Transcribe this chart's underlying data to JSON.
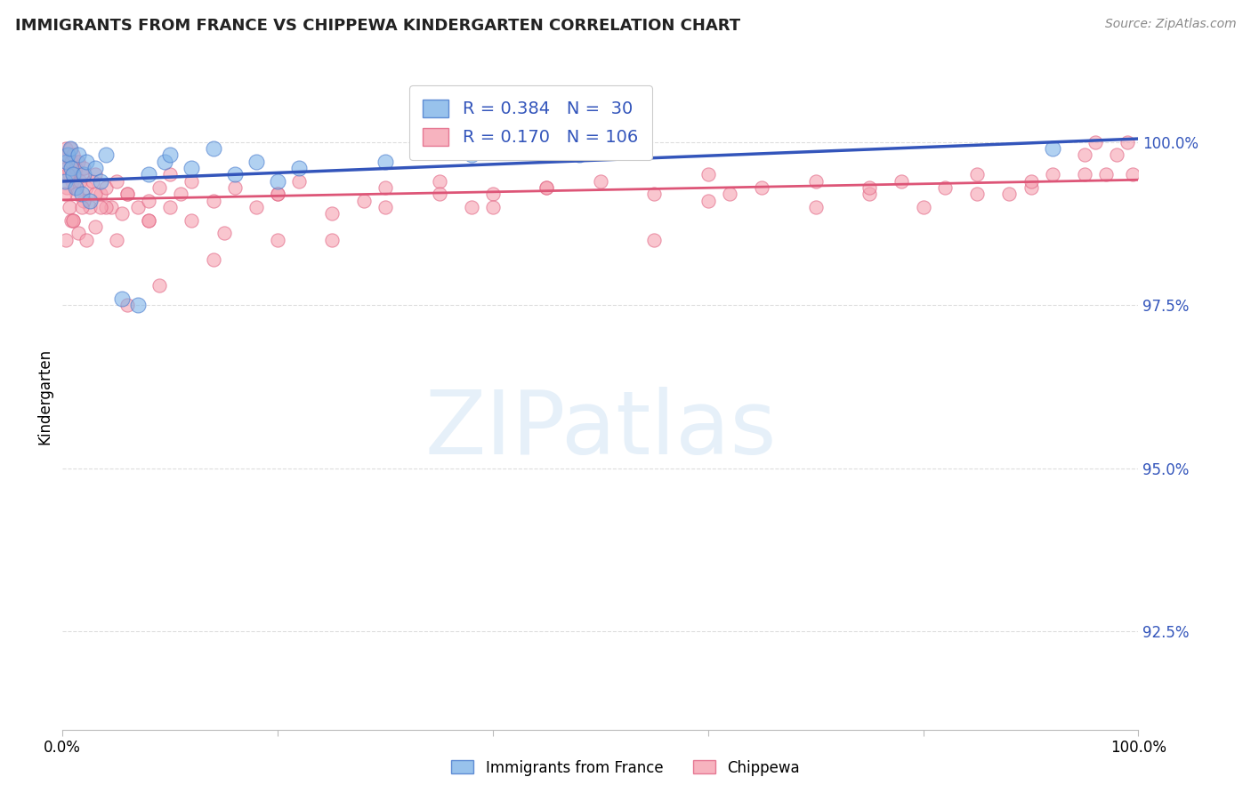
{
  "title": "IMMIGRANTS FROM FRANCE VS CHIPPEWA KINDERGARTEN CORRELATION CHART",
  "source": "Source: ZipAtlas.com",
  "ylabel": "Kindergarten",
  "ylabel_right_ticks": [
    92.5,
    95.0,
    97.5,
    100.0
  ],
  "ylabel_right_labels": [
    "92.5%",
    "95.0%",
    "97.5%",
    "100.0%"
  ],
  "xlim": [
    0.0,
    100.0
  ],
  "ylim": [
    91.0,
    101.2
  ],
  "blue_color": "#7EB3E8",
  "pink_color": "#F5A0B0",
  "blue_edge_color": "#4477CC",
  "pink_edge_color": "#E06080",
  "blue_line_color": "#3355BB",
  "pink_line_color": "#DD5577",
  "legend_blue_r": "0.384",
  "legend_blue_n": "30",
  "legend_pink_r": "0.170",
  "legend_pink_n": "106",
  "legend_r_color": "#3355BB",
  "legend_n_color": "#3355BB",
  "background_color": "#FFFFFF",
  "grid_color": "#DDDDDD",
  "watermark_text": "ZIPatlas",
  "watermark_color": "#B8D4EE",
  "france_x": [
    0.2,
    0.4,
    0.5,
    0.7,
    0.8,
    1.0,
    1.2,
    1.5,
    1.8,
    2.0,
    2.2,
    2.5,
    3.0,
    3.5,
    4.0,
    5.5,
    7.0,
    8.0,
    9.5,
    10.0,
    12.0,
    14.0,
    16.0,
    18.0,
    20.0,
    22.0,
    30.0,
    38.0,
    48.0,
    92.0
  ],
  "france_y": [
    99.4,
    99.7,
    99.8,
    99.9,
    99.6,
    99.5,
    99.3,
    99.8,
    99.2,
    99.5,
    99.7,
    99.1,
    99.6,
    99.4,
    99.8,
    97.6,
    97.5,
    99.5,
    99.7,
    99.8,
    99.6,
    99.9,
    99.5,
    99.7,
    99.4,
    99.6,
    99.7,
    99.8,
    99.8,
    99.9
  ],
  "chippewa_x": [
    0.1,
    0.2,
    0.3,
    0.4,
    0.5,
    0.6,
    0.7,
    0.8,
    0.9,
    1.0,
    1.1,
    1.2,
    1.3,
    1.5,
    1.6,
    1.8,
    2.0,
    2.2,
    2.5,
    2.8,
    3.0,
    3.5,
    4.0,
    4.5,
    5.0,
    5.5,
    6.0,
    7.0,
    8.0,
    9.0,
    10.0,
    11.0,
    12.0,
    14.0,
    16.0,
    18.0,
    20.0,
    22.0,
    25.0,
    28.0,
    30.0,
    35.0,
    38.0,
    40.0,
    45.0,
    50.0,
    55.0,
    60.0,
    62.0,
    65.0,
    70.0,
    75.0,
    78.0,
    80.0,
    82.0,
    85.0,
    88.0,
    90.0,
    92.0,
    95.0,
    96.0,
    97.0,
    98.0,
    99.0,
    99.5,
    0.3,
    0.6,
    1.0,
    1.5,
    2.0,
    3.0,
    4.0,
    6.0,
    8.0,
    10.0,
    15.0,
    20.0,
    30.0,
    45.0,
    60.0,
    75.0,
    90.0,
    0.4,
    0.8,
    1.3,
    2.2,
    3.5,
    6.0,
    9.0,
    14.0,
    25.0,
    40.0,
    55.0,
    70.0,
    85.0,
    95.0,
    0.2,
    0.5,
    1.0,
    1.8,
    3.0,
    5.0,
    8.0,
    12.0,
    20.0,
    35.0
  ],
  "chippewa_y": [
    99.8,
    99.7,
    99.9,
    99.6,
    99.8,
    99.5,
    99.9,
    99.7,
    99.4,
    99.8,
    99.5,
    99.6,
    99.3,
    99.7,
    99.4,
    99.5,
    99.6,
    99.3,
    99.0,
    99.4,
    99.5,
    99.2,
    99.3,
    99.0,
    99.4,
    98.9,
    99.2,
    99.0,
    98.8,
    99.3,
    99.5,
    99.2,
    99.4,
    99.1,
    99.3,
    99.0,
    99.2,
    99.4,
    98.9,
    99.1,
    99.3,
    99.4,
    99.0,
    99.2,
    99.3,
    99.4,
    99.2,
    99.5,
    99.2,
    99.3,
    99.4,
    99.2,
    99.4,
    99.0,
    99.3,
    99.5,
    99.2,
    99.3,
    99.5,
    99.8,
    100.0,
    99.5,
    99.8,
    100.0,
    99.5,
    98.5,
    99.0,
    98.8,
    98.6,
    99.1,
    98.7,
    99.0,
    99.2,
    98.8,
    99.0,
    98.6,
    99.2,
    99.0,
    99.3,
    99.1,
    99.3,
    99.4,
    99.3,
    98.8,
    99.2,
    98.5,
    99.0,
    97.5,
    97.8,
    98.2,
    98.5,
    99.0,
    98.5,
    99.0,
    99.2,
    99.5,
    99.2,
    99.5,
    98.8,
    99.0,
    99.2,
    98.5,
    99.1,
    98.8,
    98.5,
    99.2
  ]
}
